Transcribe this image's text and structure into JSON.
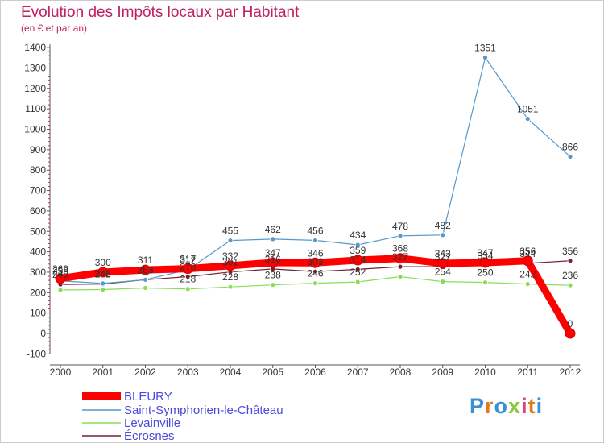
{
  "chart_data": {
    "type": "line",
    "title": "Evolution des Impôts locaux par Habitant",
    "subtitle": "(en € et par an)",
    "x": [
      "2000",
      "2001",
      "2002",
      "2003",
      "2004",
      "2005",
      "2006",
      "2007",
      "2008",
      "2009",
      "2010",
      "2011",
      "2012"
    ],
    "ylim": [
      -100,
      1400
    ],
    "yticks": [
      -100,
      0,
      100,
      200,
      300,
      400,
      500,
      600,
      700,
      800,
      900,
      1000,
      1100,
      1200,
      1300,
      1400
    ],
    "grid": false,
    "legend_position": "bottom-left",
    "series": [
      {
        "name": "BLEURY",
        "color": "#ff0000",
        "values": [
          269,
          300,
          311,
          317,
          332,
          347,
          346,
          359,
          368,
          343,
          347,
          356,
          0
        ],
        "labels": [
          "269",
          "300",
          "311",
          "317",
          "332",
          "347",
          "346",
          "359",
          "368",
          "343",
          "347",
          "356",
          "0"
        ]
      },
      {
        "name": "Saint-Symphorien-le-Château",
        "color": "#5599cc",
        "values": [
          258,
          245,
          263,
          312,
          455,
          462,
          456,
          434,
          478,
          482,
          1351,
          1051,
          866
        ],
        "labels": [
          "258",
          "245",
          "263",
          "312",
          "455",
          "462",
          "456",
          "434",
          "478",
          "482",
          "1351",
          "1051",
          "866"
        ]
      },
      {
        "name": "Levainville",
        "color": "#88dd55",
        "values": [
          213,
          215,
          223,
          218,
          228,
          238,
          246,
          252,
          278,
          254,
          250,
          242,
          236
        ],
        "labels": [
          "",
          "",
          "",
          "218",
          "228",
          "238",
          "246",
          "252",
          "",
          "254",
          "250",
          "242",
          "236"
        ]
      },
      {
        "name": "Écrosnes",
        "color": "#772233",
        "values": [
          240,
          242,
          263,
          278,
          301,
          316,
          303,
          314,
          327,
          327,
          334,
          344,
          356
        ],
        "labels": [
          "240",
          "242",
          "263",
          "278",
          "301",
          "316",
          "303",
          "314",
          "327",
          "327",
          "334",
          "344",
          "356"
        ]
      }
    ]
  },
  "brand": {
    "letters": [
      "P",
      "r",
      "o",
      "x",
      "i",
      "t",
      "i"
    ]
  }
}
